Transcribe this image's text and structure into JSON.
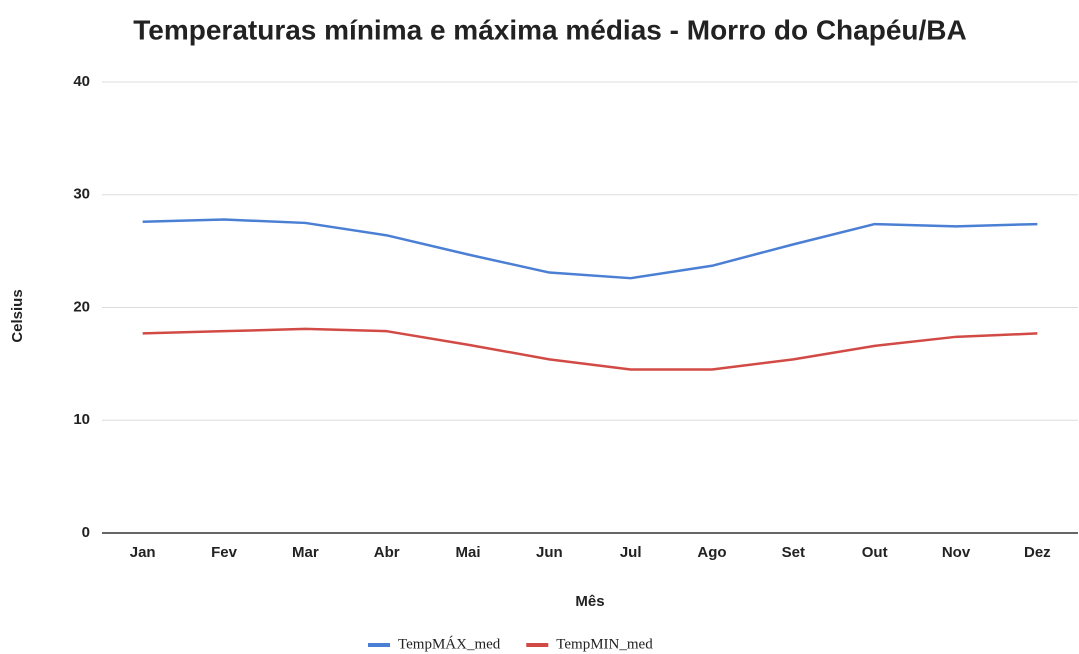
{
  "chart_data": {
    "type": "line",
    "title": "Temperaturas mínima e máxima médias - Morro do Chapéu/BA",
    "x_label": "Mês",
    "y_label": "Celsius",
    "categories": [
      "Jan",
      "Fev",
      "Mar",
      "Abr",
      "Mai",
      "Jun",
      "Jul",
      "Ago",
      "Set",
      "Out",
      "Nov",
      "Dez"
    ],
    "series": [
      {
        "name": "TempMÁX_med",
        "color": "#4a7fd4",
        "values": [
          27.6,
          27.8,
          27.5,
          26.4,
          24.7,
          23.1,
          22.6,
          23.7,
          25.6,
          27.4,
          27.2,
          27.4
        ]
      },
      {
        "name": "TempMIN_med",
        "color": "#d24a45",
        "values": [
          17.7,
          17.9,
          18.1,
          17.9,
          16.7,
          15.4,
          14.5,
          14.5,
          15.4,
          16.6,
          17.4,
          17.7
        ]
      }
    ],
    "ylim": [
      0,
      40
    ],
    "yticks": [
      0,
      10,
      20,
      30,
      40
    ],
    "grid": true,
    "legend": "bottom"
  }
}
